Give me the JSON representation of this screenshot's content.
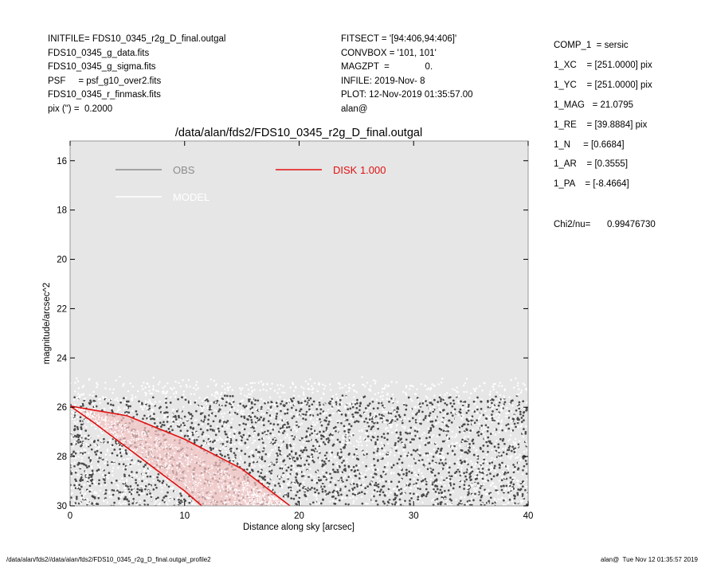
{
  "header_left": [
    "INITFILE= FDS10_0345_r2g_D_final.outgal",
    "FDS10_0345_g_data.fits",
    "FDS10_0345_g_sigma.fits",
    "PSF     = psf_g10_over2.fits",
    "FDS10_0345_r_finmask.fits",
    "pix (\") =  0.2000"
  ],
  "header_mid": [
    "FITSECT = '[94:406,94:406]'",
    "CONVBOX = '101, 101'",
    "MAGZPT  =              0.",
    "INFILE: 2019-Nov- 8",
    "PLOT: 12-Nov-2019 01:35:57.00",
    "alan@"
  ],
  "params": [
    "COMP_1  = sersic",
    "1_XC    = [251.0000] pix",
    "1_YC    = [251.0000] pix",
    "1_MAG   = 21.0795",
    "1_RE    = [39.8884] pix",
    "1_N     = [0.6684]",
    "1_AR    = [0.3555]",
    "1_PA    = [-8.4664]"
  ],
  "chi2": {
    "label": "Chi2/nu=",
    "value": "0.99476730"
  },
  "footer": {
    "left": "/data/alan/fds2//data/alan/fds2/FDS10_0345_r2g_D_final.outgal_profile2",
    "right": "alan@  Tue Nov 12 01:35:57 2019"
  },
  "chart_data": {
    "type": "scatter",
    "title": "/data/alan/fds2/FDS10_0345_r2g_D_final.outgal",
    "xlabel": "Distance along sky [arcsec]",
    "ylabel": "magnitude/arcsec^2",
    "xlim": [
      0,
      40
    ],
    "ylim": [
      15.2,
      30
    ],
    "y_inverted": true,
    "x_ticks": [
      0,
      10,
      20,
      30,
      40
    ],
    "y_ticks": [
      16,
      18,
      20,
      22,
      24,
      26,
      28,
      30
    ],
    "legend": [
      {
        "name": "OBS",
        "color": "#8c8c8c"
      },
      {
        "name": "MODEL",
        "color": "#ffffff"
      },
      {
        "name": "DISK  1.000",
        "color": "#e01010"
      }
    ],
    "plot_background": "#e6e6e6",
    "series": [
      {
        "name": "OBS",
        "color": "#4a4a4a",
        "description": "dark grey scattered points",
        "points": [
          [
            0.3,
            25.1
          ],
          [
            0.8,
            24.9
          ],
          [
            1.2,
            25.4
          ],
          [
            2.0,
            25.8
          ],
          [
            3.5,
            26.6
          ],
          [
            5.0,
            26.9
          ],
          [
            7.0,
            27.4
          ],
          [
            9.0,
            27.8
          ],
          [
            12.0,
            28.1
          ],
          [
            15.0,
            28.4
          ],
          [
            18.0,
            28.2
          ],
          [
            22.0,
            27.6
          ],
          [
            26.0,
            27.0
          ],
          [
            30.0,
            26.6
          ],
          [
            34.0,
            26.9
          ],
          [
            38.0,
            27.3
          ],
          [
            40.0,
            28.0
          ]
        ]
      },
      {
        "name": "MODEL",
        "color": "#ffffff",
        "description": "white scattered points",
        "points": [
          [
            0.5,
            25.2
          ],
          [
            3.0,
            24.8
          ],
          [
            8.0,
            25.0
          ],
          [
            15.0,
            24.9
          ],
          [
            22.0,
            25.1
          ],
          [
            30.0,
            25.0
          ],
          [
            38.0,
            25.3
          ]
        ]
      },
      {
        "name": "DISK",
        "color": "#e01010",
        "points": [
          [
            0,
            25.95
          ],
          [
            2,
            26.6
          ],
          [
            4,
            27.3
          ],
          [
            6,
            28.0
          ],
          [
            8,
            28.7
          ],
          [
            10,
            29.4
          ],
          [
            11.5,
            30.0
          ]
        ],
        "upper_edge": [
          [
            0,
            25.95
          ],
          [
            5,
            26.35
          ],
          [
            10,
            27.3
          ],
          [
            15,
            28.5
          ],
          [
            19.2,
            30.0
          ]
        ]
      }
    ]
  }
}
